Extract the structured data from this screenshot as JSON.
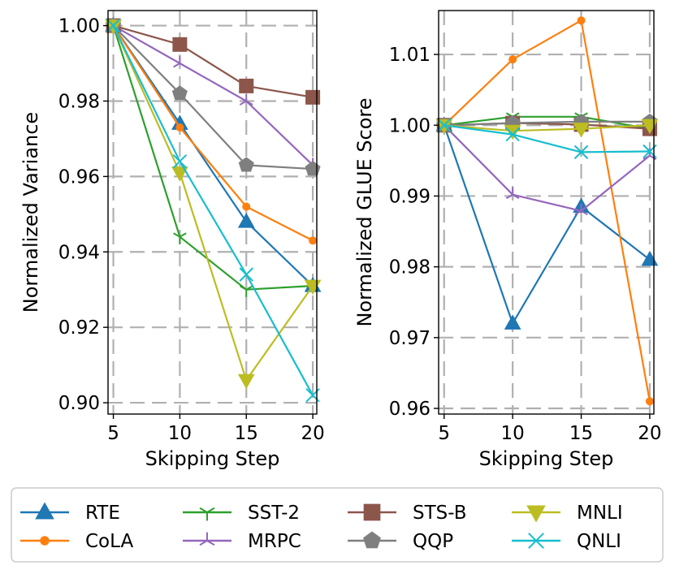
{
  "chart_data": [
    {
      "type": "line",
      "x": [
        5,
        10,
        15,
        20
      ],
      "xlabel": "Skipping Step",
      "ylabel": "Normalized Variance",
      "xlim": [
        4.6,
        20.3
      ],
      "ylim": [
        0.897,
        1.004
      ],
      "xticks": [
        "5",
        "10",
        "15",
        "20"
      ],
      "yticks": [
        "0.90",
        "0.92",
        "0.94",
        "0.96",
        "0.98",
        "1.00"
      ],
      "ytick_values": [
        0.9,
        0.92,
        0.94,
        0.96,
        0.98,
        1.0
      ],
      "grid": true,
      "series": [
        {
          "name": "RTE",
          "values": [
            1.0,
            0.974,
            0.948,
            0.931
          ]
        },
        {
          "name": "CoLA",
          "values": [
            1.0,
            0.973,
            0.952,
            0.943
          ]
        },
        {
          "name": "SST-2",
          "values": [
            1.0,
            0.944,
            0.93,
            0.931
          ]
        },
        {
          "name": "MRPC",
          "values": [
            1.0,
            0.99,
            0.98,
            0.963
          ]
        },
        {
          "name": "STS-B",
          "values": [
            1.0,
            0.995,
            0.984,
            0.981
          ]
        },
        {
          "name": "QQP",
          "values": [
            1.0,
            0.982,
            0.963,
            0.962
          ]
        },
        {
          "name": "MNLI",
          "values": [
            1.0,
            0.961,
            0.906,
            0.931
          ]
        },
        {
          "name": "QNLI",
          "values": [
            1.0,
            0.964,
            0.934,
            0.902
          ]
        }
      ]
    },
    {
      "type": "line",
      "x": [
        5,
        10,
        15,
        20
      ],
      "xlabel": "Skipping Step",
      "ylabel": "Normalized GLUE Score",
      "xlim": [
        4.6,
        20.3
      ],
      "ylim": [
        0.9592,
        1.0162
      ],
      "xticks": [
        "5",
        "10",
        "15",
        "20"
      ],
      "yticks": [
        "0.96",
        "0.97",
        "0.98",
        "0.99",
        "1.00",
        "1.01"
      ],
      "ytick_values": [
        0.96,
        0.97,
        0.98,
        0.99,
        1.0,
        1.01
      ],
      "grid": true,
      "series": [
        {
          "name": "RTE",
          "values": [
            1.0,
            0.972,
            0.9885,
            0.981
          ]
        },
        {
          "name": "CoLA",
          "values": [
            1.0,
            1.0093,
            1.0148,
            0.961
          ]
        },
        {
          "name": "SST-2",
          "values": [
            1.0,
            1.0012,
            1.0012,
            0.9995
          ]
        },
        {
          "name": "MRPC",
          "values": [
            1.0,
            0.9902,
            0.9879,
            0.9957
          ]
        },
        {
          "name": "STS-B",
          "values": [
            1.0,
            1.0003,
            1.0001,
            0.9995
          ]
        },
        {
          "name": "QQP",
          "values": [
            1.0,
            1.0003,
            1.0005,
            1.0005
          ]
        },
        {
          "name": "MNLI",
          "values": [
            1.0,
            0.9992,
            0.9995,
            1.0
          ]
        },
        {
          "name": "QNLI",
          "values": [
            1.0,
            0.9987,
            0.9962,
            0.9963
          ]
        }
      ]
    }
  ],
  "legend": [
    {
      "name": "RTE",
      "color": "#1f77b4",
      "marker": "triangle-up"
    },
    {
      "name": "CoLA",
      "color": "#ff7f0e",
      "marker": "circle"
    },
    {
      "name": "SST-2",
      "color": "#2ca02c",
      "marker": "tri-down"
    },
    {
      "name": "MRPC",
      "color": "#9467bd",
      "marker": "tri-up"
    },
    {
      "name": "STS-B",
      "color": "#8c564b",
      "marker": "square"
    },
    {
      "name": "QQP",
      "color": "#7f7f7f",
      "marker": "pentagon"
    },
    {
      "name": "MNLI",
      "color": "#bcbd22",
      "marker": "triangle-down"
    },
    {
      "name": "QNLI",
      "color": "#17becf",
      "marker": "x"
    }
  ]
}
